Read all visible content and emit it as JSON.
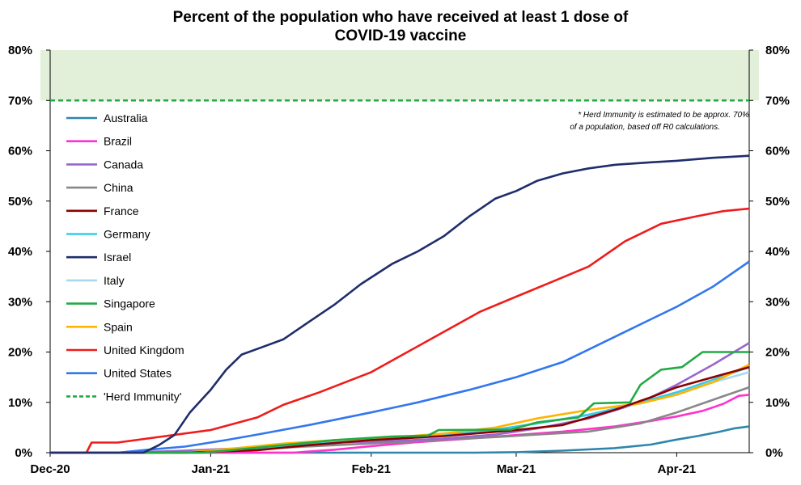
{
  "chart_data": {
    "type": "line",
    "title_line1": "Percent of the population who have received at least 1 dose of",
    "title_line2": "COVID-19 vaccine",
    "x_range": [
      "2020-12-01",
      "2021-04-15"
    ],
    "x_ticks": [
      {
        "date": "2020-12-01",
        "label": "Dec-20"
      },
      {
        "date": "2021-01-01",
        "label": "Jan-21"
      },
      {
        "date": "2021-02-01",
        "label": "Feb-21"
      },
      {
        "date": "2021-03-01",
        "label": "Mar-21"
      },
      {
        "date": "2021-04-01",
        "label": "Apr-21"
      }
    ],
    "ylim": [
      0,
      80
    ],
    "y_ticks": [
      {
        "value": 0,
        "label": "0%"
      },
      {
        "value": 10,
        "label": "10%"
      },
      {
        "value": 20,
        "label": "20%"
      },
      {
        "value": 30,
        "label": "30%"
      },
      {
        "value": 40,
        "label": "40%"
      },
      {
        "value": 50,
        "label": "50%"
      },
      {
        "value": 60,
        "label": "60%"
      },
      {
        "value": 70,
        "label": "70%"
      },
      {
        "value": 80,
        "label": "80%"
      }
    ],
    "secondary_y_axis": true,
    "herd_immunity_band": {
      "from": 70,
      "to": 80,
      "color": "#e2efd9"
    },
    "herd_immunity_level": 70,
    "annotation_line1": "* Herd Immunity is estimated to be approx. 70%",
    "annotation_line2": "of a population, based off R0 calculations.",
    "legend_position": "left",
    "series": [
      {
        "name": "Australia",
        "color": "#2e86ab",
        "style": "solid",
        "points": [
          [
            "2020-12-01",
            0
          ],
          [
            "2021-02-21",
            0
          ],
          [
            "2021-03-01",
            0.1
          ],
          [
            "2021-03-10",
            0.4
          ],
          [
            "2021-03-20",
            0.9
          ],
          [
            "2021-03-27",
            1.6
          ],
          [
            "2021-04-01",
            2.6
          ],
          [
            "2021-04-05",
            3.3
          ],
          [
            "2021-04-09",
            4.1
          ],
          [
            "2021-04-12",
            4.8
          ],
          [
            "2021-04-15",
            5.2
          ]
        ]
      },
      {
        "name": "Brazil",
        "color": "#ff33cc",
        "style": "solid",
        "points": [
          [
            "2020-12-01",
            0
          ],
          [
            "2021-01-17",
            0
          ],
          [
            "2021-01-25",
            0.6
          ],
          [
            "2021-02-01",
            1.3
          ],
          [
            "2021-02-10",
            2.1
          ],
          [
            "2021-02-20",
            2.8
          ],
          [
            "2021-03-01",
            3.5
          ],
          [
            "2021-03-10",
            4.2
          ],
          [
            "2021-03-20",
            5.2
          ],
          [
            "2021-03-27",
            6.3
          ],
          [
            "2021-04-01",
            7.2
          ],
          [
            "2021-04-06",
            8.3
          ],
          [
            "2021-04-10",
            9.7
          ],
          [
            "2021-04-13",
            11.3
          ],
          [
            "2021-04-15",
            11.5
          ]
        ]
      },
      {
        "name": "Canada",
        "color": "#9966cc",
        "style": "solid",
        "points": [
          [
            "2020-12-01",
            0
          ],
          [
            "2020-12-14",
            0
          ],
          [
            "2020-12-25",
            0.3
          ],
          [
            "2021-01-05",
            0.8
          ],
          [
            "2021-01-15",
            1.5
          ],
          [
            "2021-01-25",
            2.0
          ],
          [
            "2021-02-05",
            2.3
          ],
          [
            "2021-02-15",
            2.8
          ],
          [
            "2021-02-25",
            3.6
          ],
          [
            "2021-03-05",
            4.8
          ],
          [
            "2021-03-15",
            6.8
          ],
          [
            "2021-03-25",
            10.0
          ],
          [
            "2021-04-01",
            13.5
          ],
          [
            "2021-04-08",
            17.5
          ],
          [
            "2021-04-15",
            21.8
          ]
        ]
      },
      {
        "name": "China",
        "color": "#888888",
        "style": "solid",
        "points": [
          [
            "2020-12-01",
            0
          ],
          [
            "2020-12-15",
            0
          ],
          [
            "2020-12-25",
            0.2
          ],
          [
            "2021-01-05",
            0.6
          ],
          [
            "2021-01-15",
            1.0
          ],
          [
            "2021-01-25",
            1.5
          ],
          [
            "2021-02-05",
            2.0
          ],
          [
            "2021-02-15",
            2.6
          ],
          [
            "2021-02-25",
            3.1
          ],
          [
            "2021-03-05",
            3.6
          ],
          [
            "2021-03-15",
            4.2
          ],
          [
            "2021-03-25",
            5.8
          ],
          [
            "2021-04-01",
            8.0
          ],
          [
            "2021-04-08",
            10.5
          ],
          [
            "2021-04-15",
            13.0
          ]
        ]
      },
      {
        "name": "France",
        "color": "#8b0000",
        "style": "solid",
        "points": [
          [
            "2020-12-01",
            0
          ],
          [
            "2020-12-27",
            0
          ],
          [
            "2021-01-10",
            0.5
          ],
          [
            "2021-01-20",
            1.5
          ],
          [
            "2021-02-01",
            2.5
          ],
          [
            "2021-02-15",
            3.3
          ],
          [
            "2021-03-01",
            4.5
          ],
          [
            "2021-03-10",
            5.5
          ],
          [
            "2021-03-20",
            8.5
          ],
          [
            "2021-03-27",
            11.0
          ],
          [
            "2021-04-01",
            13.0
          ],
          [
            "2021-04-08",
            15.0
          ],
          [
            "2021-04-15",
            17.0
          ]
        ]
      },
      {
        "name": "Germany",
        "color": "#33ccee",
        "style": "solid",
        "points": [
          [
            "2020-12-01",
            0
          ],
          [
            "2020-12-26",
            0
          ],
          [
            "2021-01-05",
            0.6
          ],
          [
            "2021-01-15",
            1.3
          ],
          [
            "2021-01-25",
            2.0
          ],
          [
            "2021-02-05",
            2.7
          ],
          [
            "2021-02-15",
            3.5
          ],
          [
            "2021-02-25",
            4.6
          ],
          [
            "2021-03-05",
            5.8
          ],
          [
            "2021-03-15",
            7.5
          ],
          [
            "2021-03-25",
            10.0
          ],
          [
            "2021-04-01",
            12.0
          ],
          [
            "2021-04-08",
            14.5
          ],
          [
            "2021-04-15",
            17.0
          ]
        ]
      },
      {
        "name": "Israel",
        "color": "#1f2d6b",
        "style": "solid",
        "points": [
          [
            "2020-12-01",
            0
          ],
          [
            "2020-12-19",
            0
          ],
          [
            "2020-12-22",
            1.5
          ],
          [
            "2020-12-25",
            3.5
          ],
          [
            "2020-12-28",
            8.0
          ],
          [
            "2021-01-01",
            12.5
          ],
          [
            "2021-01-04",
            16.5
          ],
          [
            "2021-01-07",
            19.5
          ],
          [
            "2021-01-11",
            21.0
          ],
          [
            "2021-01-15",
            22.5
          ],
          [
            "2021-01-20",
            26.0
          ],
          [
            "2021-01-25",
            29.5
          ],
          [
            "2021-01-30",
            33.5
          ],
          [
            "2021-02-05",
            37.5
          ],
          [
            "2021-02-10",
            40.0
          ],
          [
            "2021-02-15",
            43.0
          ],
          [
            "2021-02-20",
            47.0
          ],
          [
            "2021-02-25",
            50.5
          ],
          [
            "2021-03-01",
            52.0
          ],
          [
            "2021-03-05",
            54.0
          ],
          [
            "2021-03-10",
            55.5
          ],
          [
            "2021-03-15",
            56.5
          ],
          [
            "2021-03-20",
            57.2
          ],
          [
            "2021-03-27",
            57.7
          ],
          [
            "2021-04-01",
            58.0
          ],
          [
            "2021-04-08",
            58.6
          ],
          [
            "2021-04-15",
            59.0
          ]
        ]
      },
      {
        "name": "Italy",
        "color": "#a8d8f0",
        "style": "solid",
        "points": [
          [
            "2020-12-01",
            0
          ],
          [
            "2020-12-27",
            0
          ],
          [
            "2021-01-05",
            0.7
          ],
          [
            "2021-01-15",
            1.6
          ],
          [
            "2021-01-25",
            2.3
          ],
          [
            "2021-02-05",
            2.7
          ],
          [
            "2021-02-15",
            3.4
          ],
          [
            "2021-02-25",
            4.5
          ],
          [
            "2021-03-05",
            5.8
          ],
          [
            "2021-03-15",
            7.6
          ],
          [
            "2021-03-25",
            9.8
          ],
          [
            "2021-04-01",
            11.8
          ],
          [
            "2021-04-08",
            14.0
          ],
          [
            "2021-04-15",
            16.0
          ]
        ]
      },
      {
        "name": "Singapore",
        "color": "#22aa44",
        "style": "solid",
        "points": [
          [
            "2020-12-01",
            0
          ],
          [
            "2020-12-30",
            0
          ],
          [
            "2021-01-05",
            0.5
          ],
          [
            "2021-01-15",
            1.5
          ],
          [
            "2021-01-25",
            2.5
          ],
          [
            "2021-02-05",
            3.2
          ],
          [
            "2021-02-12",
            3.4
          ],
          [
            "2021-02-14",
            4.5
          ],
          [
            "2021-02-28",
            4.6
          ],
          [
            "2021-03-05",
            6.0
          ],
          [
            "2021-03-13",
            7.0
          ],
          [
            "2021-03-16",
            9.8
          ],
          [
            "2021-03-23",
            10.0
          ],
          [
            "2021-03-25",
            13.5
          ],
          [
            "2021-03-29",
            16.5
          ],
          [
            "2021-04-02",
            17.0
          ],
          [
            "2021-04-06",
            20.0
          ],
          [
            "2021-04-15",
            20.0
          ]
        ]
      },
      {
        "name": "Spain",
        "color": "#ffb300",
        "style": "solid",
        "points": [
          [
            "2020-12-01",
            0
          ],
          [
            "2020-12-27",
            0
          ],
          [
            "2021-01-05",
            0.8
          ],
          [
            "2021-01-15",
            1.8
          ],
          [
            "2021-01-25",
            2.5
          ],
          [
            "2021-02-05",
            3.0
          ],
          [
            "2021-02-15",
            3.8
          ],
          [
            "2021-02-25",
            5.0
          ],
          [
            "2021-03-05",
            6.8
          ],
          [
            "2021-03-15",
            8.5
          ],
          [
            "2021-03-25",
            9.8
          ],
          [
            "2021-04-01",
            11.5
          ],
          [
            "2021-04-08",
            14.0
          ],
          [
            "2021-04-15",
            17.5
          ]
        ]
      },
      {
        "name": "United Kingdom",
        "color": "#ee1c1c",
        "style": "solid",
        "points": [
          [
            "2020-12-01",
            0
          ],
          [
            "2020-12-08",
            0
          ],
          [
            "2020-12-09",
            2.0
          ],
          [
            "2020-12-14",
            2.0
          ],
          [
            "2021-01-01",
            4.5
          ],
          [
            "2021-01-10",
            7.0
          ],
          [
            "2021-01-15",
            9.5
          ],
          [
            "2021-01-22",
            12.0
          ],
          [
            "2021-02-01",
            16.0
          ],
          [
            "2021-02-08",
            20.0
          ],
          [
            "2021-02-15",
            24.0
          ],
          [
            "2021-02-22",
            28.0
          ],
          [
            "2021-03-01",
            31.0
          ],
          [
            "2021-03-08",
            34.0
          ],
          [
            "2021-03-15",
            37.0
          ],
          [
            "2021-03-22",
            42.0
          ],
          [
            "2021-03-29",
            45.5
          ],
          [
            "2021-04-05",
            47.0
          ],
          [
            "2021-04-10",
            48.0
          ],
          [
            "2021-04-15",
            48.5
          ]
        ]
      },
      {
        "name": "United States",
        "color": "#3377ee",
        "style": "solid",
        "points": [
          [
            "2020-12-01",
            0
          ],
          [
            "2020-12-14",
            0
          ],
          [
            "2020-12-20",
            0.6
          ],
          [
            "2020-12-27",
            1.2
          ],
          [
            "2021-01-04",
            2.5
          ],
          [
            "2021-01-10",
            3.6
          ],
          [
            "2021-01-20",
            5.5
          ],
          [
            "2021-02-01",
            8.0
          ],
          [
            "2021-02-10",
            10.0
          ],
          [
            "2021-02-20",
            12.5
          ],
          [
            "2021-03-01",
            15.0
          ],
          [
            "2021-03-10",
            18.0
          ],
          [
            "2021-03-20",
            23.0
          ],
          [
            "2021-03-27",
            26.5
          ],
          [
            "2021-04-01",
            29.0
          ],
          [
            "2021-04-08",
            33.0
          ],
          [
            "2021-04-15",
            38.0
          ]
        ]
      },
      {
        "name": "'Herd Immunity'",
        "color": "#22aa44",
        "style": "dashed",
        "points": []
      }
    ]
  }
}
